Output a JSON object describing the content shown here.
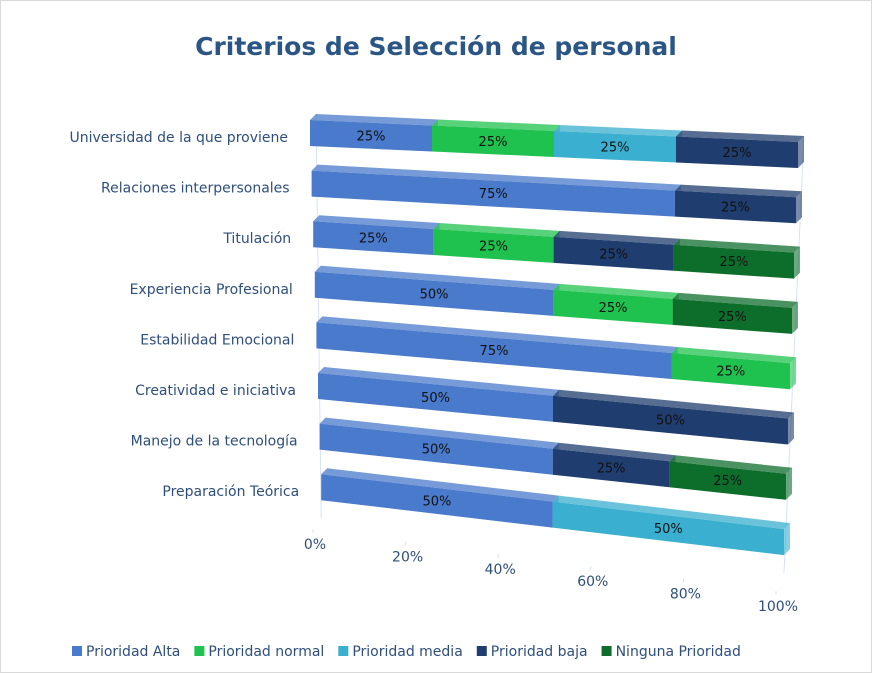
{
  "chart_data": {
    "type": "bar3d_stacked_horizontal",
    "title": "Criterios de Selección de personal",
    "categories": [
      "Universidad de la que proviene",
      "Relaciones interpersonales",
      "Titulación",
      "Experiencia Profesional",
      "Estabilidad Emocional",
      "Creatividad e iniciativa",
      "Manejo de la tecnología",
      "Preparación Teórica"
    ],
    "series": [
      {
        "name": "Prioridad Alta",
        "color": "#4a7acb",
        "values": [
          25,
          75,
          25,
          50,
          75,
          50,
          50,
          50
        ],
        "value_labels": [
          "25%",
          "75%",
          "25%",
          "50%",
          "75%",
          "50%",
          "50%",
          "50%"
        ]
      },
      {
        "name": "Prioridad normal",
        "color": "#1fc24e",
        "values": [
          25,
          null,
          25,
          25,
          25,
          null,
          null,
          null
        ],
        "value_labels": [
          "25%",
          null,
          "25%",
          "25%",
          "25%",
          null,
          null,
          null
        ]
      },
      {
        "name": "Prioridad media",
        "color": "#3aafcf",
        "values": [
          25,
          null,
          null,
          null,
          null,
          null,
          null,
          50
        ],
        "value_labels": [
          "25%",
          null,
          null,
          null,
          null,
          null,
          null,
          "50%"
        ]
      },
      {
        "name": "Prioridad baja",
        "color": "#1f3d6e",
        "values": [
          25,
          25,
          25,
          null,
          null,
          50,
          25,
          null
        ],
        "value_labels": [
          "25%",
          "25%",
          "25%",
          null,
          null,
          "50%",
          "25%",
          null
        ]
      },
      {
        "name": "Ninguna Prioridad",
        "color": "#0d6e2c",
        "values": [
          null,
          null,
          25,
          25,
          null,
          null,
          25,
          null
        ],
        "value_labels": [
          null,
          null,
          "25%",
          "25%",
          null,
          null,
          "25%",
          null
        ]
      }
    ],
    "xlim": [
      0,
      100
    ],
    "xticks": [
      {
        "value": 0,
        "label": "0%"
      },
      {
        "value": 20,
        "label": "20%"
      },
      {
        "value": 40,
        "label": "40%"
      },
      {
        "value": 60,
        "label": "60%"
      },
      {
        "value": 80,
        "label": "80%"
      },
      {
        "value": 100,
        "label": "100%"
      }
    ],
    "legend": "bottom"
  }
}
